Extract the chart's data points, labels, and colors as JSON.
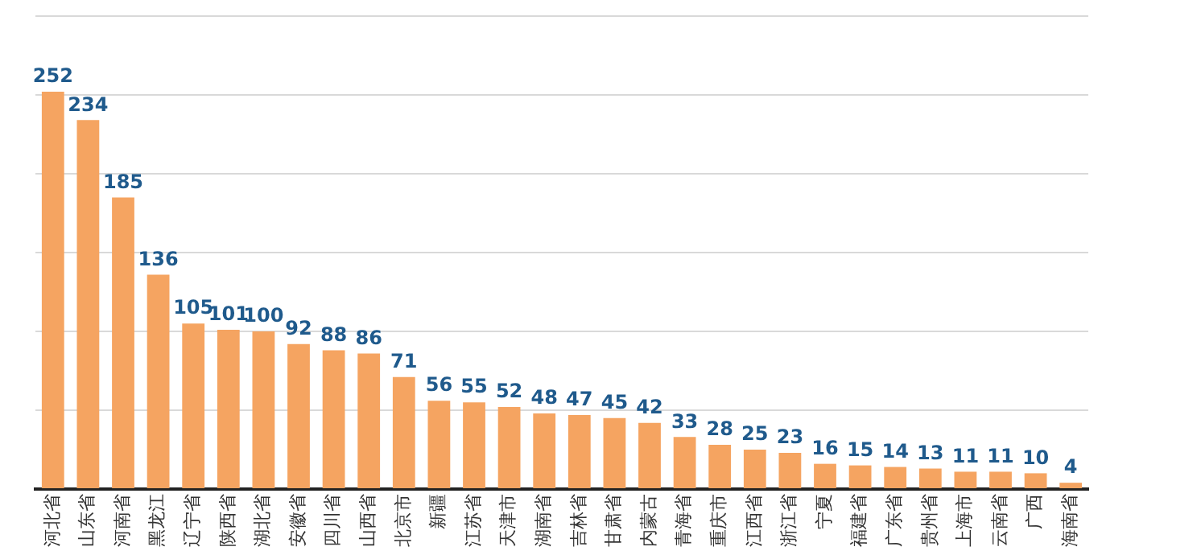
{
  "chart_data": {
    "type": "bar",
    "categories": [
      "河北省",
      "山东省",
      "河南省",
      "黑龙江",
      "辽宁省",
      "陕西省",
      "湖北省",
      "安徽省",
      "四川省",
      "山西省",
      "北京市",
      "新疆",
      "江苏省",
      "天津市",
      "湖南省",
      "吉林省",
      "甘肃省",
      "内蒙古",
      "青海省",
      "重庆市",
      "江西省",
      "浙江省",
      "宁夏",
      "福建省",
      "广东省",
      "贵州省",
      "上海市",
      "云南省",
      "广西",
      "海南省"
    ],
    "values": [
      252,
      234,
      185,
      136,
      105,
      101,
      100,
      92,
      88,
      86,
      71,
      56,
      55,
      52,
      48,
      47,
      45,
      42,
      33,
      28,
      25,
      23,
      16,
      15,
      14,
      13,
      11,
      11,
      10,
      4
    ],
    "color": "#f5a461",
    "ylim": [
      0,
      300
    ],
    "yticks": [
      {
        "value": 0,
        "label": null
      },
      {
        "value": 50,
        "label": null
      },
      {
        "value": 100,
        "label": null
      },
      {
        "value": 150,
        "label": null
      },
      {
        "value": 200,
        "label": null
      },
      {
        "value": 250,
        "label": null
      },
      {
        "value": 300,
        "label": null
      }
    ],
    "grid": "y",
    "legend": false,
    "tick_labels": "x",
    "data_labels": true
  }
}
